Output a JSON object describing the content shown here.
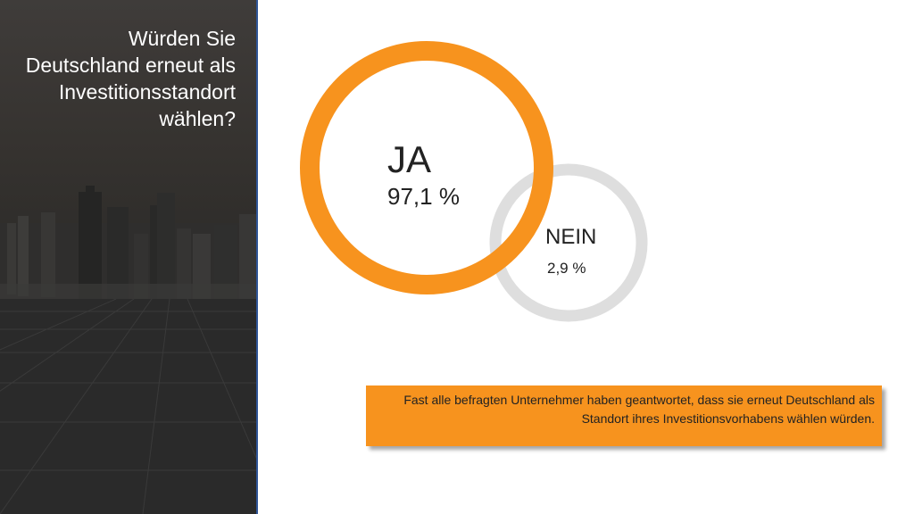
{
  "slide": {
    "question": "Würden Sie Deutschland erneut als Investitionsstandort wählen?",
    "yes_label": "JA",
    "yes_value": "97,1 %",
    "no_label": "NEIN",
    "no_value": "2,9 %",
    "summary": "Fast alle befragten Unternehmer haben geantwortet, dass sie erneut Deutschland als Standort ihres Investitionsvorhabens wählen würden."
  },
  "colors": {
    "accent": "#f7931e",
    "ring_no": "#dedede",
    "panel_border": "#2f5597",
    "panel_bg": "#2e2c2a"
  }
}
